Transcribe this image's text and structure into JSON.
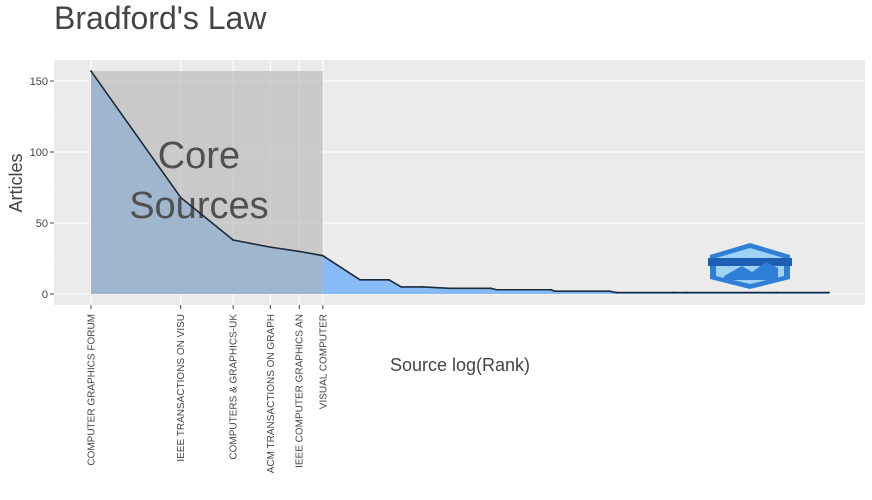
{
  "chart_data": {
    "type": "area",
    "title": "Bradford's Law",
    "xlabel": "Source log(Rank)",
    "ylabel": "Articles",
    "ylim": [
      0,
      160
    ],
    "yticks": [
      0,
      50,
      100,
      150
    ],
    "x_scale": "log",
    "core_label": [
      "Core",
      "Sources"
    ],
    "labeled_sources": [
      "COMPUTER GRAPHICS FORUM",
      "IEEE TRANSACTIONS ON VISU",
      "COMPUTERS & GRAPHICS-UK",
      "ACM TRANSACTIONS ON GRAPH",
      "IEEE COMPUTER GRAPHICS AN",
      "VISUAL COMPUTER"
    ],
    "core_zone_ranks": 6,
    "series": [
      {
        "rank": [
          1,
          2,
          3,
          4,
          5,
          6,
          8,
          10,
          11,
          13,
          16,
          22,
          23,
          35,
          36,
          55,
          58,
          90,
          100,
          200,
          300
        ],
        "values": [
          157,
          68,
          38,
          33,
          30,
          27,
          10,
          10,
          5,
          5,
          4,
          4,
          3,
          3,
          2,
          2,
          1,
          1,
          1,
          1,
          1
        ]
      }
    ],
    "colors": {
      "core_area": "#7197c0",
      "tail_area": "#86bbf7",
      "core_zone": "#b3b3b3",
      "line": "#1c2b3a",
      "panel": "#ebebeb",
      "grid": "#ffffff"
    },
    "grid": true,
    "logo": "bibliometrix-logo"
  }
}
